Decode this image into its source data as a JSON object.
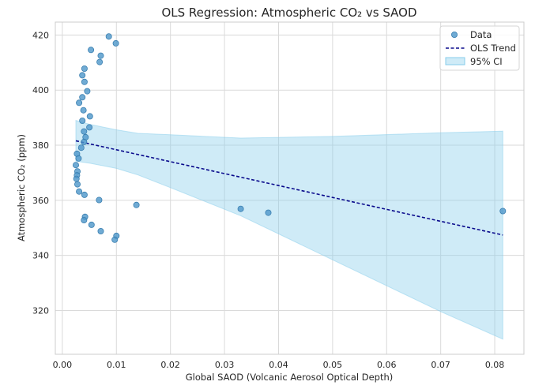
{
  "chart_data": {
    "type": "scatter",
    "title": "OLS Regression: Atmospheric CO₂ vs SAOD",
    "xlabel": "Global SAOD (Volcanic Aerosol Optical Depth)",
    "ylabel": "Atmospheric CO₂ (ppm)",
    "xlim": [
      -0.0013,
      0.0854
    ],
    "ylim": [
      304.1,
      424.7
    ],
    "xticks": [
      0.0,
      0.01,
      0.02,
      0.03,
      0.04,
      0.05,
      0.06,
      0.07,
      0.08
    ],
    "xtick_labels": [
      "0.00",
      "0.01",
      "0.02",
      "0.03",
      "0.04",
      "0.05",
      "0.06",
      "0.07",
      "0.08"
    ],
    "yticks": [
      320,
      340,
      360,
      380,
      400,
      420
    ],
    "ytick_labels": [
      "320",
      "340",
      "360",
      "380",
      "400",
      "420"
    ],
    "grid": true,
    "legend": {
      "position": "top-right",
      "entries": [
        "Data",
        "OLS Trend",
        "95% CI"
      ]
    },
    "colors": {
      "data": "#4c96c9",
      "trend": "#0a0a8c",
      "ci_fill": "#87ceeb"
    },
    "series": [
      {
        "name": "Data",
        "kind": "scatter",
        "points": [
          [
            0.0086,
            419.5
          ],
          [
            0.0099,
            417.0
          ],
          [
            0.0053,
            414.6
          ],
          [
            0.0071,
            412.5
          ],
          [
            0.0069,
            410.2
          ],
          [
            0.0041,
            407.8
          ],
          [
            0.0037,
            405.4
          ],
          [
            0.0041,
            403.0
          ],
          [
            0.0046,
            399.6
          ],
          [
            0.0037,
            397.4
          ],
          [
            0.0031,
            395.4
          ],
          [
            0.0039,
            392.7
          ],
          [
            0.0051,
            390.5
          ],
          [
            0.0037,
            388.9
          ],
          [
            0.005,
            386.5
          ],
          [
            0.004,
            385.0
          ],
          [
            0.0043,
            382.9
          ],
          [
            0.004,
            381.2
          ],
          [
            0.0035,
            379.1
          ],
          [
            0.0027,
            376.9
          ],
          [
            0.003,
            375.2
          ],
          [
            0.0025,
            372.8
          ],
          [
            0.0028,
            370.5
          ],
          [
            0.0027,
            369.1
          ],
          [
            0.0026,
            367.8
          ],
          [
            0.0028,
            365.8
          ],
          [
            0.0031,
            363.2
          ],
          [
            0.0041,
            362.0
          ],
          [
            0.0068,
            360.1
          ],
          [
            0.0137,
            358.3
          ],
          [
            0.033,
            356.9
          ],
          [
            0.0381,
            355.5
          ],
          [
            0.0815,
            356.1
          ],
          [
            0.0042,
            354.0
          ],
          [
            0.004,
            352.8
          ],
          [
            0.0054,
            351.1
          ],
          [
            0.0071,
            348.8
          ],
          [
            0.01,
            347.1
          ],
          [
            0.0097,
            345.7
          ]
        ]
      },
      {
        "name": "OLS Trend",
        "kind": "line",
        "points": [
          [
            0.0025,
            381.6
          ],
          [
            0.0815,
            347.4
          ]
        ]
      },
      {
        "name": "95% CI",
        "kind": "band",
        "x": [
          0.0025,
          0.005,
          0.01,
          0.014,
          0.02,
          0.033,
          0.05,
          0.07,
          0.0815
        ],
        "upper": [
          389.0,
          387.6,
          385.6,
          384.3,
          383.8,
          382.6,
          383.2,
          384.5,
          385.1
        ],
        "lower": [
          374.2,
          373.5,
          371.6,
          369.2,
          364.6,
          354.4,
          338.4,
          319.6,
          309.6
        ]
      }
    ]
  }
}
